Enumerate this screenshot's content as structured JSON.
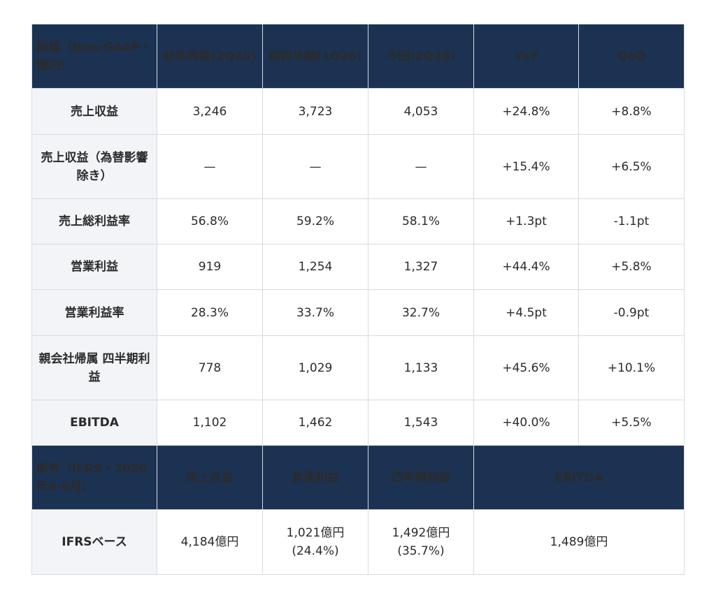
{
  "table": {
    "header": {
      "metric": "指標（Non-GAAP・億円）",
      "prev_year": "前年同期(2Q25)",
      "prev_quarter": "前四半期(1Q26)",
      "current": "今回(2Q26)",
      "yoy": "YoY",
      "qoq": "QoQ"
    },
    "rows": [
      {
        "label": "売上収益",
        "prev_year": "3,246",
        "prev_quarter": "3,723",
        "current": "4,053",
        "yoy": "+24.8%",
        "qoq": "+8.8%"
      },
      {
        "label": "売上収益（為替影響除き）",
        "prev_year": "—",
        "prev_quarter": "—",
        "current": "—",
        "yoy": "+15.4%",
        "qoq": "+6.5%"
      },
      {
        "label": "売上総利益率",
        "prev_year": "56.8%",
        "prev_quarter": "59.2%",
        "current": "58.1%",
        "yoy": "+1.3pt",
        "qoq": "-1.1pt"
      },
      {
        "label": "営業利益",
        "prev_year": "919",
        "prev_quarter": "1,254",
        "current": "1,327",
        "yoy": "+44.4%",
        "qoq": "+5.8%"
      },
      {
        "label": "営業利益率",
        "prev_year": "28.3%",
        "prev_quarter": "33.7%",
        "current": "32.7%",
        "yoy": "+4.5pt",
        "qoq": "-0.9pt"
      },
      {
        "label": "親会社帰属 四半期利益",
        "prev_year": "778",
        "prev_quarter": "1,029",
        "current": "1,133",
        "yoy": "+45.6%",
        "qoq": "+10.1%"
      },
      {
        "label": "EBITDA",
        "prev_year": "1,102",
        "prev_quarter": "1,462",
        "current": "1,543",
        "yoy": "+40.0%",
        "qoq": "+5.5%"
      }
    ],
    "ref_header": {
      "label": "参考（IFRS・2026年4-6月）",
      "revenue": "売上収益",
      "operating_profit": "営業利益",
      "quarterly_profit": "四半期利益",
      "ebitda": "EBITDA"
    },
    "ref_row": {
      "label": "IFRSベース",
      "revenue": "4,184億円",
      "operating_profit": "1,021億円",
      "operating_profit_rate": "(24.4%)",
      "quarterly_profit": "1,492億円",
      "quarterly_profit_rate": "(35.7%)",
      "ebitda": "1,489億円"
    }
  },
  "colors": {
    "header_bg": "#1c3252",
    "label_bg": "#f3f4f8",
    "positive": "#2e8b47",
    "border": "#d6dbe3"
  }
}
